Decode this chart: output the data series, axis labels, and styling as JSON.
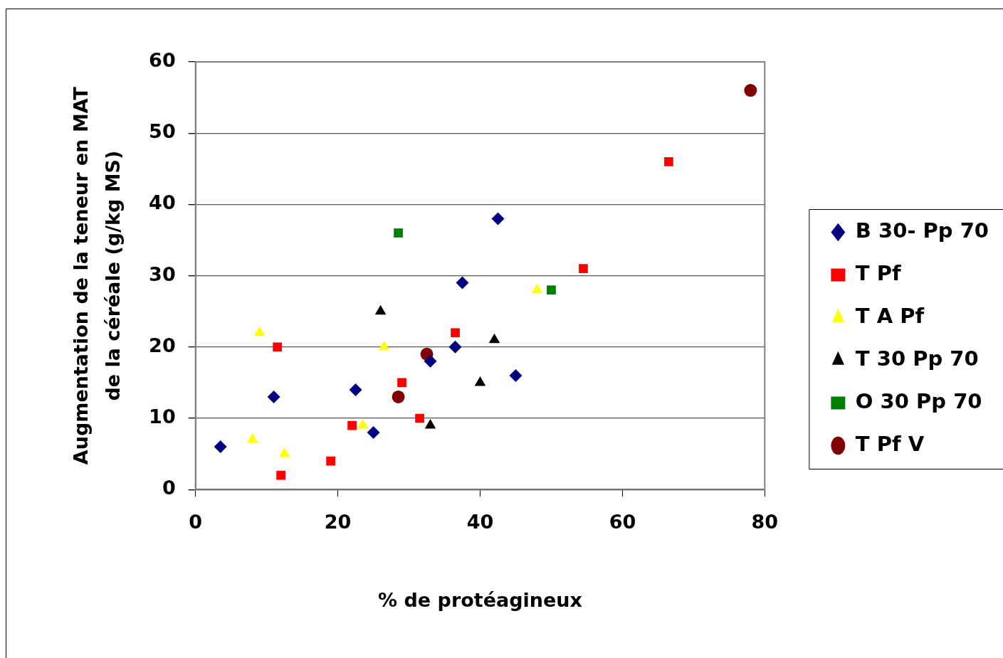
{
  "chart_data": {
    "type": "scatter",
    "xlabel": "% de protéagineux",
    "ylabel": "Augmentation de la teneur en MAT\nde la céréale (g/kg MS)",
    "xlim": [
      0,
      80
    ],
    "xticks": [
      0,
      20,
      40,
      60,
      80
    ],
    "ylim": [
      0,
      60
    ],
    "yticks": [
      0,
      10,
      20,
      30,
      40,
      50,
      60
    ],
    "grid": "y",
    "legend": "right",
    "series": [
      {
        "name": "B 30- Pp 70",
        "color": "#000080",
        "marker": "diamond",
        "x": [
          3.5,
          11,
          22.5,
          25,
          33,
          36.5,
          37.5,
          42.5,
          45
        ],
        "values": [
          6,
          13,
          14,
          8,
          18,
          20,
          29,
          38,
          16
        ]
      },
      {
        "name": "T Pf",
        "color": "#ff0000",
        "marker": "square",
        "x": [
          11.5,
          12,
          19,
          22,
          29,
          31.5,
          36.5,
          54.5,
          66.5
        ],
        "values": [
          20,
          2,
          4,
          9,
          15,
          10,
          22,
          31,
          46
        ]
      },
      {
        "name": "T A Pf",
        "color": "#ffff00",
        "marker": "triangle",
        "x": [
          9,
          8,
          12.5,
          23.5,
          26.5,
          48
        ],
        "values": [
          22,
          7,
          5,
          9,
          20,
          28
        ]
      },
      {
        "name": "T 30 Pp 70",
        "color": "#000000",
        "marker": "triangle",
        "x": [
          26,
          33,
          40,
          42
        ],
        "values": [
          25,
          9,
          15,
          21
        ]
      },
      {
        "name": "O 30 Pp 70",
        "color": "#008000",
        "marker": "square",
        "x": [
          28.5,
          50
        ],
        "values": [
          36,
          28
        ]
      },
      {
        "name": "T Pf V",
        "color": "#800000",
        "marker": "circle",
        "x": [
          28.5,
          32.5,
          78
        ],
        "values": [
          13,
          19,
          56
        ]
      }
    ]
  }
}
